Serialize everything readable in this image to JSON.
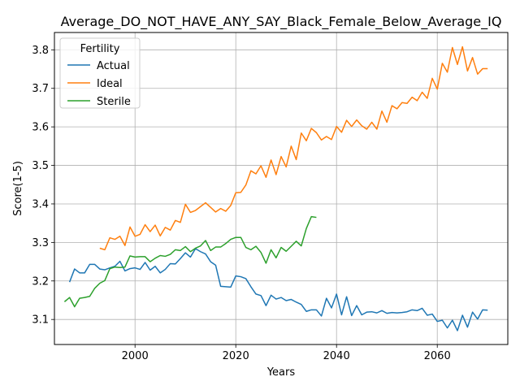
{
  "chart_data": {
    "type": "line",
    "title": "Average_DO_NOT_HAVE_ANY_SAY_Black_Female_Below_Average_IQ",
    "xlabel": "Years",
    "ylabel": "Score(1-5)",
    "xlim": [
      1984,
      2074
    ],
    "ylim": [
      3.035,
      3.845
    ],
    "xticks": [
      2000,
      2020,
      2040,
      2060
    ],
    "yticks": [
      3.1,
      3.2,
      3.3,
      3.4,
      3.5,
      3.6,
      3.7,
      3.8
    ],
    "xtick_labels": [
      "2000",
      "2020",
      "2040",
      "2060"
    ],
    "ytick_labels": [
      "3.1",
      "3.2",
      "3.3",
      "3.4",
      "3.5",
      "3.6",
      "3.7",
      "3.8"
    ],
    "grid": true,
    "legend": {
      "title": "Fertility",
      "position": "upper-left"
    },
    "series": [
      {
        "name": "Actual",
        "color": "#1f77b4",
        "x": [
          1987,
          1988,
          1989,
          1990,
          1991,
          1992,
          1993,
          1994,
          1995,
          1996,
          1997,
          1998,
          1999,
          2000,
          2001,
          2002,
          2003,
          2004,
          2005,
          2006,
          2007,
          2008,
          2009,
          2010,
          2011,
          2012,
          2013,
          2014,
          2015,
          2016,
          2017,
          2018,
          2019,
          2020,
          2021,
          2022,
          2023,
          2024,
          2025,
          2026,
          2027,
          2028,
          2029,
          2030,
          2031,
          2032,
          2033,
          2034,
          2035,
          2036,
          2037,
          2038,
          2039,
          2040,
          2041,
          2042,
          2043,
          2044,
          2045,
          2046,
          2047,
          2048,
          2049,
          2050,
          2051,
          2052,
          2053,
          2054,
          2055,
          2056,
          2057,
          2058,
          2059,
          2060,
          2061,
          2062,
          2063,
          2064,
          2065,
          2066,
          2067,
          2068,
          2069,
          2070
        ],
        "values": [
          3.197,
          3.231,
          3.221,
          3.221,
          3.243,
          3.243,
          3.231,
          3.229,
          3.234,
          3.238,
          3.251,
          3.226,
          3.232,
          3.234,
          3.23,
          3.248,
          3.228,
          3.238,
          3.221,
          3.23,
          3.245,
          3.244,
          3.258,
          3.273,
          3.262,
          3.284,
          3.276,
          3.27,
          3.25,
          3.241,
          3.186,
          3.185,
          3.184,
          3.213,
          3.211,
          3.206,
          3.185,
          3.166,
          3.162,
          3.136,
          3.163,
          3.153,
          3.157,
          3.149,
          3.152,
          3.145,
          3.139,
          3.121,
          3.125,
          3.125,
          3.109,
          3.155,
          3.13,
          3.166,
          3.112,
          3.159,
          3.11,
          3.136,
          3.112,
          3.119,
          3.12,
          3.117,
          3.123,
          3.116,
          3.118,
          3.117,
          3.118,
          3.12,
          3.125,
          3.123,
          3.129,
          3.111,
          3.114,
          3.095,
          3.098,
          3.078,
          3.098,
          3.071,
          3.111,
          3.08,
          3.119,
          3.101,
          3.125,
          3.124
        ]
      },
      {
        "name": "Ideal",
        "color": "#ff7f0e",
        "x": [
          1993,
          1994,
          1995,
          1996,
          1997,
          1998,
          1999,
          2000,
          2001,
          2002,
          2003,
          2004,
          2005,
          2006,
          2007,
          2008,
          2009,
          2010,
          2011,
          2012,
          2013,
          2014,
          2015,
          2016,
          2017,
          2018,
          2019,
          2020,
          2021,
          2022,
          2023,
          2024,
          2025,
          2026,
          2027,
          2028,
          2029,
          2030,
          2031,
          2032,
          2033,
          2034,
          2035,
          2036,
          2037,
          2038,
          2039,
          2040,
          2041,
          2042,
          2043,
          2044,
          2045,
          2046,
          2047,
          2048,
          2049,
          2050,
          2051,
          2052,
          2053,
          2054,
          2055,
          2056,
          2057,
          2058,
          2059,
          2060,
          2061,
          2062,
          2063,
          2064,
          2065,
          2066,
          2067,
          2068,
          2069,
          2070
        ],
        "values": [
          3.285,
          3.281,
          3.312,
          3.308,
          3.316,
          3.292,
          3.34,
          3.316,
          3.321,
          3.346,
          3.328,
          3.345,
          3.317,
          3.339,
          3.332,
          3.357,
          3.352,
          3.399,
          3.378,
          3.383,
          3.393,
          3.403,
          3.391,
          3.379,
          3.388,
          3.381,
          3.396,
          3.429,
          3.43,
          3.449,
          3.486,
          3.478,
          3.499,
          3.469,
          3.514,
          3.476,
          3.523,
          3.496,
          3.55,
          3.515,
          3.584,
          3.564,
          3.596,
          3.585,
          3.566,
          3.575,
          3.567,
          3.601,
          3.586,
          3.617,
          3.601,
          3.618,
          3.603,
          3.594,
          3.612,
          3.594,
          3.641,
          3.612,
          3.655,
          3.647,
          3.663,
          3.661,
          3.677,
          3.668,
          3.69,
          3.674,
          3.726,
          3.698,
          3.765,
          3.742,
          3.806,
          3.762,
          3.808,
          3.745,
          3.78,
          3.737,
          3.751,
          3.751
        ]
      },
      {
        "name": "Sterile",
        "color": "#2ca02c",
        "x": [
          1986,
          1987,
          1988,
          1989,
          1990,
          1991,
          1992,
          1993,
          1994,
          1995,
          1996,
          1997,
          1998,
          1999,
          2000,
          2001,
          2002,
          2003,
          2004,
          2005,
          2006,
          2007,
          2008,
          2009,
          2010,
          2011,
          2012,
          2013,
          2014,
          2015,
          2016,
          2017,
          2018,
          2019,
          2020,
          2021,
          2022,
          2023,
          2024,
          2025,
          2026,
          2027,
          2028,
          2029,
          2030,
          2031,
          2032,
          2033,
          2034,
          2035,
          2036
        ],
        "values": [
          3.146,
          3.157,
          3.133,
          3.155,
          3.157,
          3.16,
          3.181,
          3.194,
          3.201,
          3.232,
          3.236,
          3.235,
          3.236,
          3.265,
          3.262,
          3.263,
          3.263,
          3.25,
          3.259,
          3.266,
          3.264,
          3.269,
          3.281,
          3.279,
          3.289,
          3.276,
          3.285,
          3.291,
          3.305,
          3.279,
          3.288,
          3.288,
          3.297,
          3.308,
          3.313,
          3.313,
          3.287,
          3.281,
          3.29,
          3.274,
          3.246,
          3.281,
          3.26,
          3.287,
          3.277,
          3.29,
          3.303,
          3.291,
          3.336,
          3.367,
          3.365
        ]
      }
    ]
  }
}
